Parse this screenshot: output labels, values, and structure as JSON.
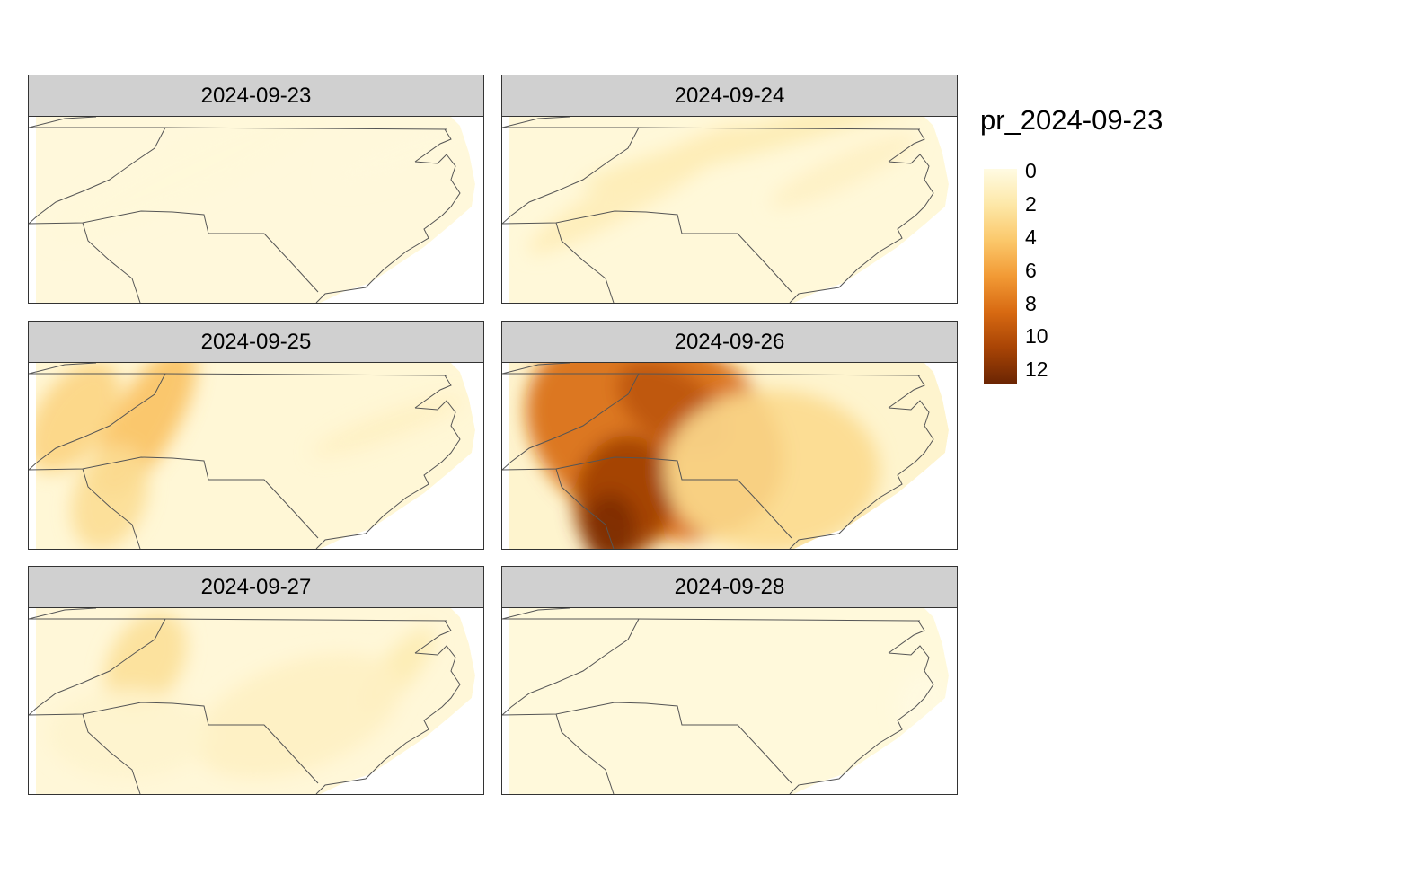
{
  "panels": [
    {
      "date": "2024-09-23",
      "intensity": 0.08
    },
    {
      "date": "2024-09-24",
      "intensity": 0.22
    },
    {
      "date": "2024-09-25",
      "intensity": 0.45
    },
    {
      "date": "2024-09-26",
      "intensity": 0.95
    },
    {
      "date": "2024-09-27",
      "intensity": 0.3
    },
    {
      "date": "2024-09-28",
      "intensity": 0.03
    }
  ],
  "legend": {
    "title": "pr_2024-09-23",
    "labels": [
      "0",
      "2",
      "4",
      "6",
      "8",
      "10",
      "12"
    ],
    "colors": [
      "#fffbe3",
      "#fde8a8",
      "#fbc86b",
      "#f29a35",
      "#d86a12",
      "#a84405",
      "#6b2503"
    ]
  }
}
